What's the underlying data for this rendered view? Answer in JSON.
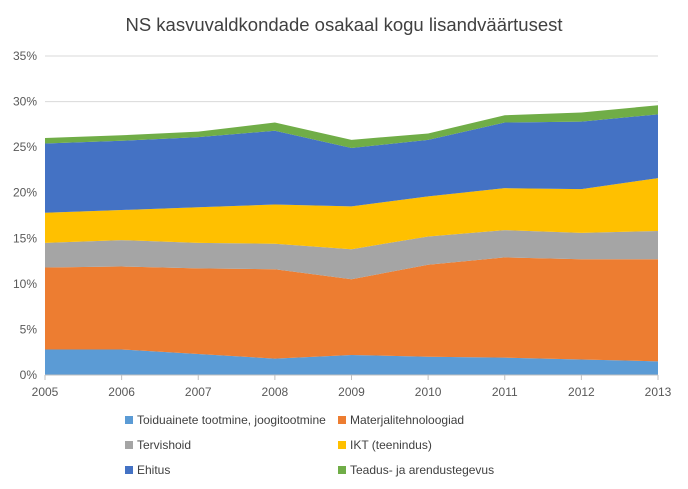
{
  "chart_data": {
    "type": "area",
    "stacked": true,
    "title": "NS kasvuvaldkondade osakaal kogu lisandväärtusest",
    "xlabel": "",
    "ylabel": "",
    "x": [
      "2005",
      "2006",
      "2007",
      "2008",
      "2009",
      "2010",
      "2011",
      "2012",
      "2013"
    ],
    "ylim": [
      0,
      35
    ],
    "yticks": [
      0,
      5,
      10,
      15,
      20,
      25,
      30,
      35
    ],
    "ytick_labels": [
      "0%",
      "5%",
      "10%",
      "15%",
      "20%",
      "25%",
      "30%",
      "35%"
    ],
    "grid": true,
    "legend_position": "bottom",
    "series": [
      {
        "name": "Toiduainete tootmine, joogitootmine",
        "color": "#5B9BD5",
        "values": [
          2.8,
          2.8,
          2.3,
          1.8,
          2.2,
          2.0,
          1.9,
          1.7,
          1.5
        ]
      },
      {
        "name": "Materjalitehnoloogiad",
        "color": "#ED7D31",
        "values": [
          9.0,
          9.1,
          9.4,
          9.8,
          8.3,
          10.1,
          11.0,
          11.0,
          11.2
        ]
      },
      {
        "name": "Tervishoid",
        "color": "#A5A5A5",
        "values": [
          2.7,
          2.9,
          2.8,
          2.8,
          3.3,
          3.1,
          3.0,
          2.9,
          3.1
        ]
      },
      {
        "name": "IKT (teenindus)",
        "color": "#FFC000",
        "values": [
          3.3,
          3.3,
          3.9,
          4.3,
          4.7,
          4.4,
          4.6,
          4.8,
          5.8
        ]
      },
      {
        "name": "Ehitus",
        "color": "#4472C4",
        "values": [
          7.6,
          7.6,
          7.7,
          8.1,
          6.4,
          6.2,
          7.2,
          7.4,
          7.0
        ]
      },
      {
        "name": "Teadus- ja arendustegevus",
        "color": "#70AD47",
        "values": [
          0.6,
          0.6,
          0.6,
          0.9,
          0.9,
          0.7,
          0.8,
          1.0,
          1.0
        ]
      }
    ]
  }
}
